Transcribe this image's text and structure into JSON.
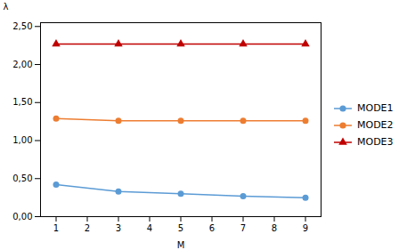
{
  "chart_data": {
    "type": "line",
    "xlabel": "M",
    "ylabel": "λ",
    "x": [
      1,
      3,
      5,
      7,
      9
    ],
    "series": [
      {
        "name": "MODE1",
        "color": "#5B9BD5",
        "marker": "circle",
        "values": [
          0.42,
          0.33,
          0.3,
          0.27,
          0.25
        ]
      },
      {
        "name": "MODE2",
        "color": "#ED7D31",
        "marker": "circle",
        "values": [
          1.29,
          1.26,
          1.26,
          1.26,
          1.26
        ]
      },
      {
        "name": "MODE3",
        "color": "#C00000",
        "marker": "triangle",
        "values": [
          2.27,
          2.27,
          2.27,
          2.27,
          2.27
        ]
      }
    ],
    "xlim": [
      0.5,
      9.5
    ],
    "ylim": [
      0.0,
      2.55
    ],
    "xticks": [
      1,
      2,
      3,
      4,
      5,
      6,
      7,
      8,
      9
    ],
    "yticks": [
      {
        "value": 0.0,
        "label": "0,00"
      },
      {
        "value": 0.5,
        "label": "0,50"
      },
      {
        "value": 1.0,
        "label": "1,00"
      },
      {
        "value": 1.5,
        "label": "1,50"
      },
      {
        "value": 2.0,
        "label": "2,00"
      },
      {
        "value": 2.5,
        "label": "2,50"
      }
    ],
    "grid": false,
    "legend": "center right"
  }
}
